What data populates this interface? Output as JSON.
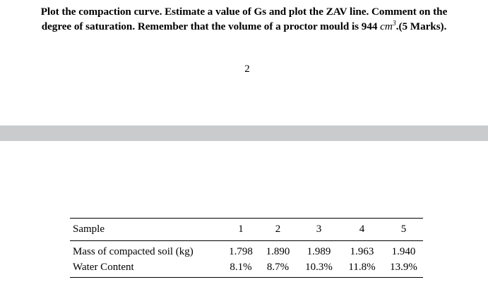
{
  "question": {
    "line1": "Plot the compaction curve. Estimate a value of Gs and plot the ZAV line. Comment on the",
    "line2_prefix": "degree of saturation. Remember that the volume of a proctor mould is 944 ",
    "line2_unit": "cm",
    "line2_unit_exponent": "3",
    "line2_suffix": ".(5 Marks)."
  },
  "page_number": "2",
  "table": {
    "header": {
      "label": "Sample",
      "samples": [
        "1",
        "2",
        "3",
        "4",
        "5"
      ]
    },
    "rows": [
      {
        "label": "Mass of compacted soil (kg)",
        "values": [
          "1.798",
          "1.890",
          "1.989",
          "1.963",
          "1.940"
        ]
      },
      {
        "label": "Water Content",
        "values": [
          "8.1%",
          "8.7%",
          "10.3%",
          "11.8%",
          "13.9%"
        ]
      }
    ]
  }
}
